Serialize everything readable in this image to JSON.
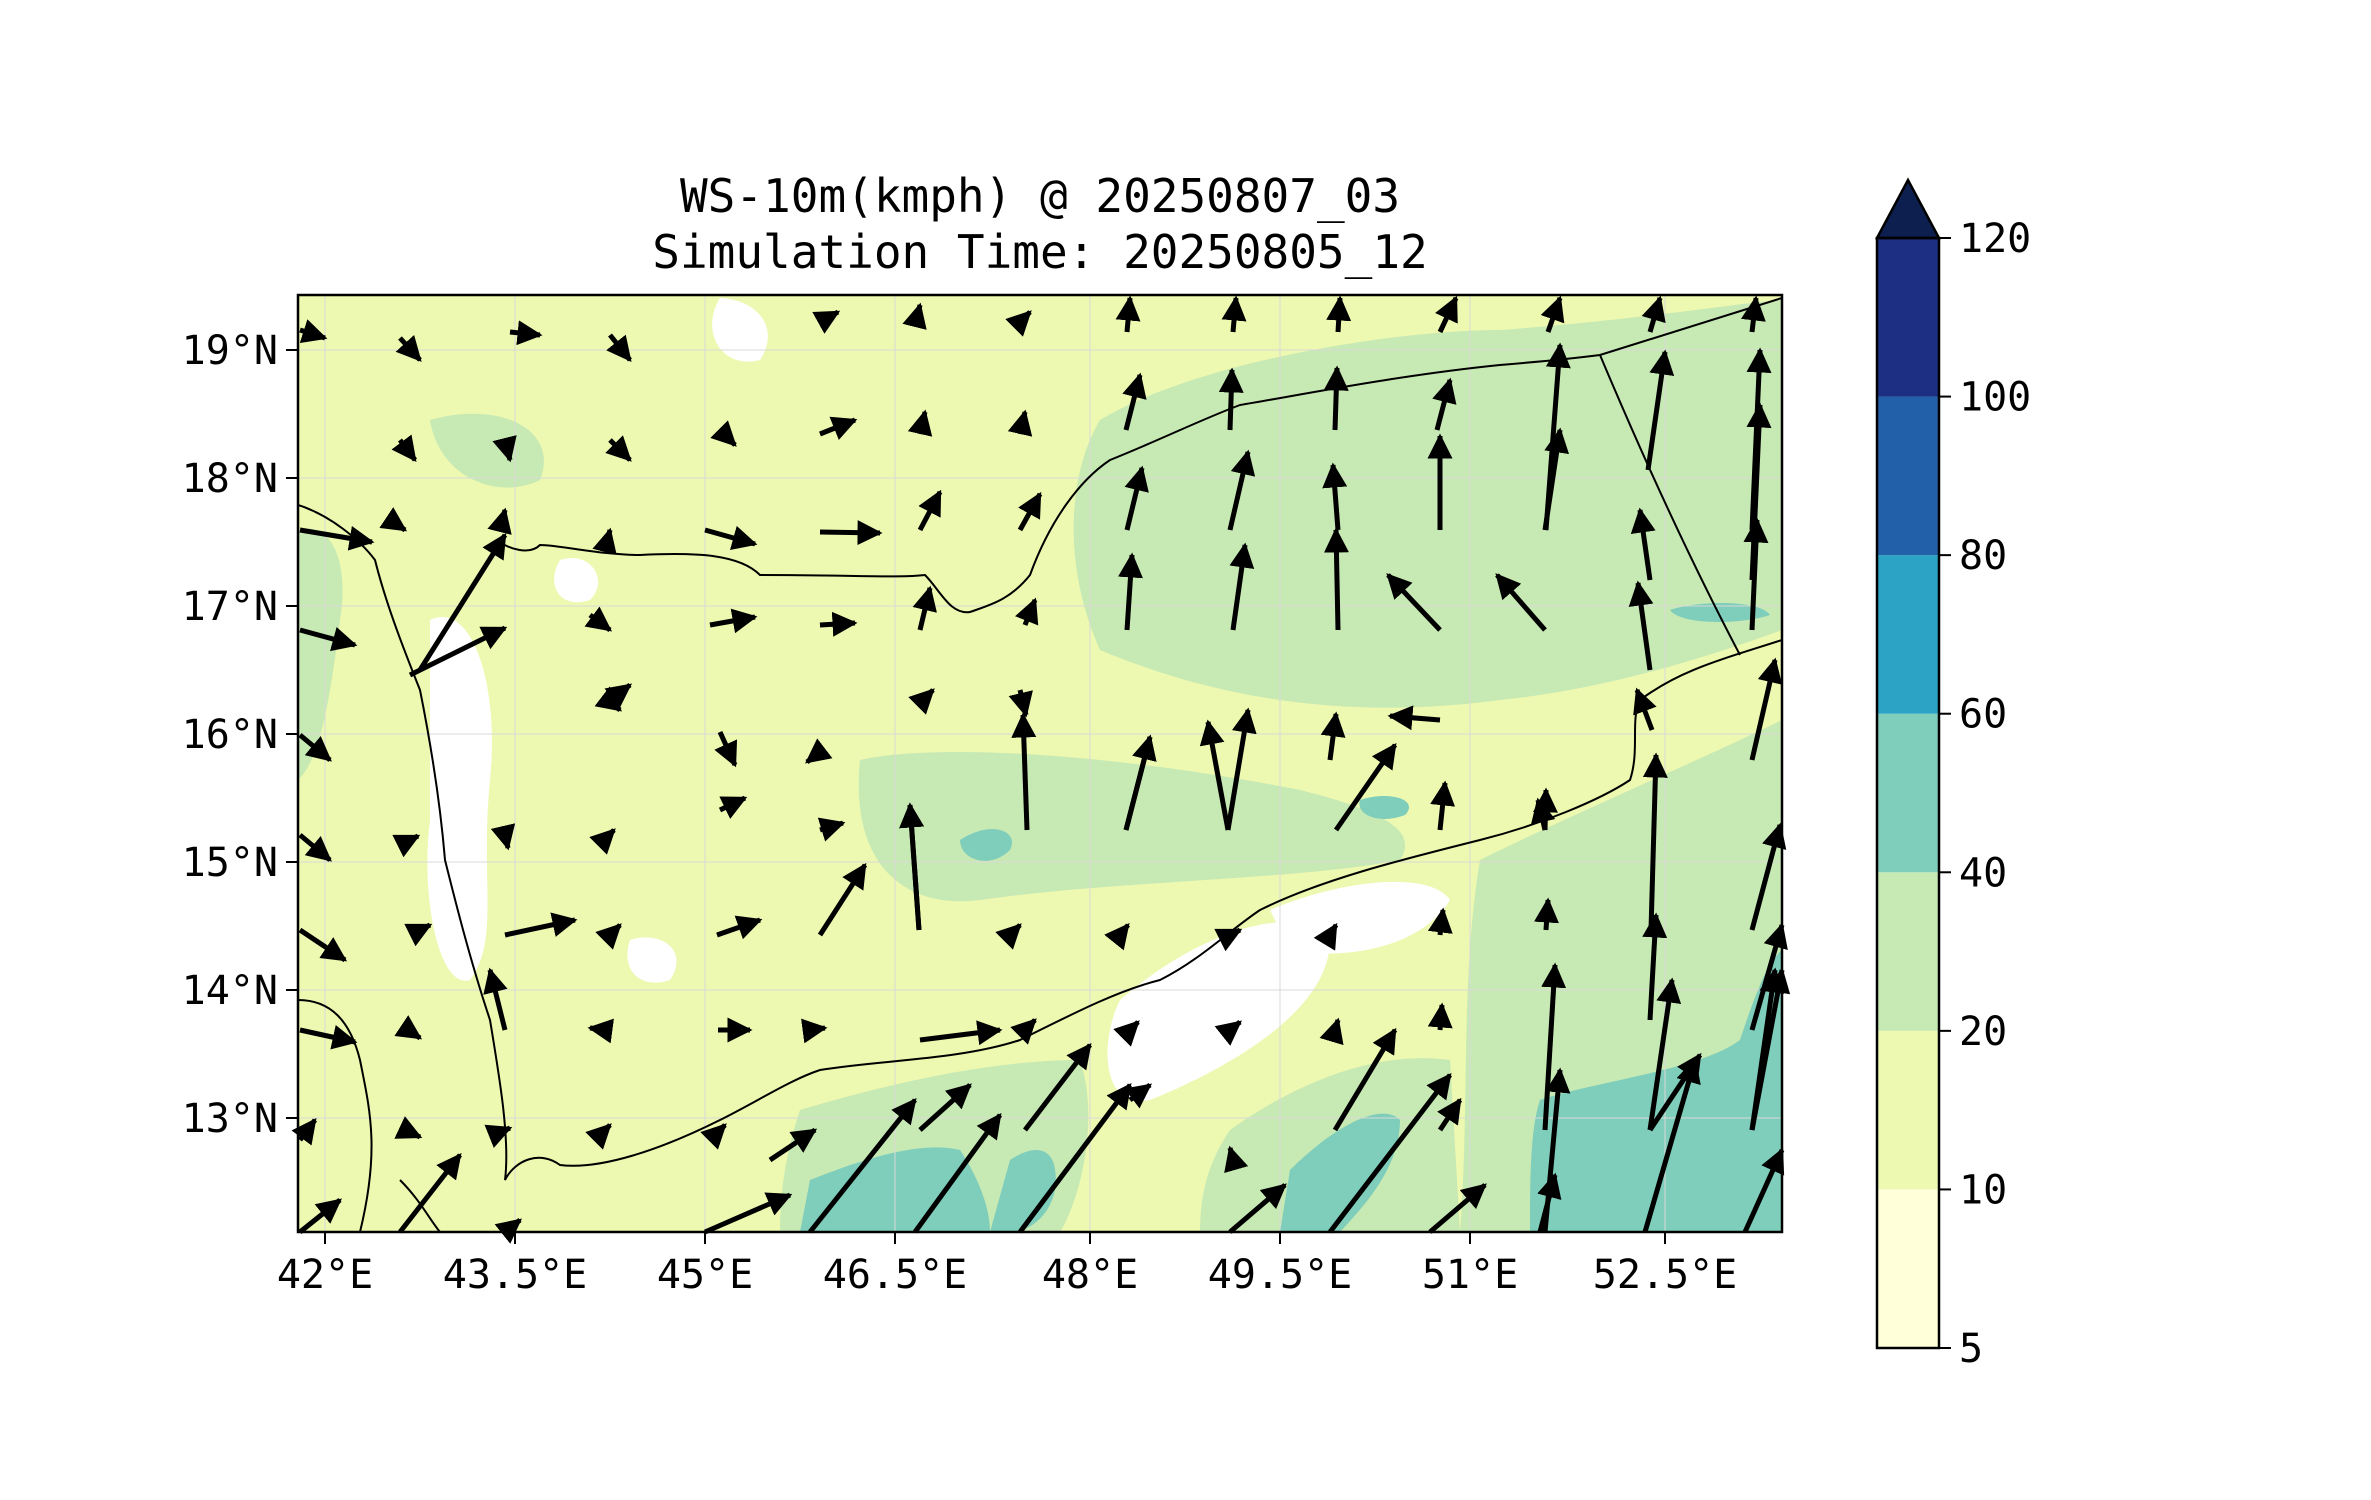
{
  "title": {
    "line1": "WS-10m(kmph) @ 20250807_03",
    "line2": "Simulation Time: 20250805_12"
  },
  "map": {
    "x_ticks": [
      "42°E",
      "43.5°E",
      "45°E",
      "46.5°E",
      "48°E",
      "49.5°E",
      "51°E",
      "52.5°E"
    ],
    "y_ticks": [
      "19°N",
      "18°N",
      "17°N",
      "16°N",
      "15°N",
      "14°N",
      "13°N"
    ],
    "lon_range": [
      42.0,
      53.6
    ],
    "lat_range": [
      12.1,
      19.45
    ],
    "grid": true
  },
  "colorbar": {
    "levels": [
      "5",
      "10",
      "20",
      "40",
      "60",
      "80",
      "100",
      "120"
    ],
    "colors": [
      "#ffffd9",
      "#edf8b1",
      "#c7e9b4",
      "#7fcdbb",
      "#2ca3c4",
      "#2260a9",
      "#1c2f83"
    ],
    "extend_color": "#0c1f4f",
    "extend": "max"
  },
  "field_colors": {
    "land_base": "#edf8b1",
    "calm": "#ffffff",
    "moderate": "#c7e9b4",
    "strong": "#7fcdbb",
    "coast": "#000000"
  }
}
